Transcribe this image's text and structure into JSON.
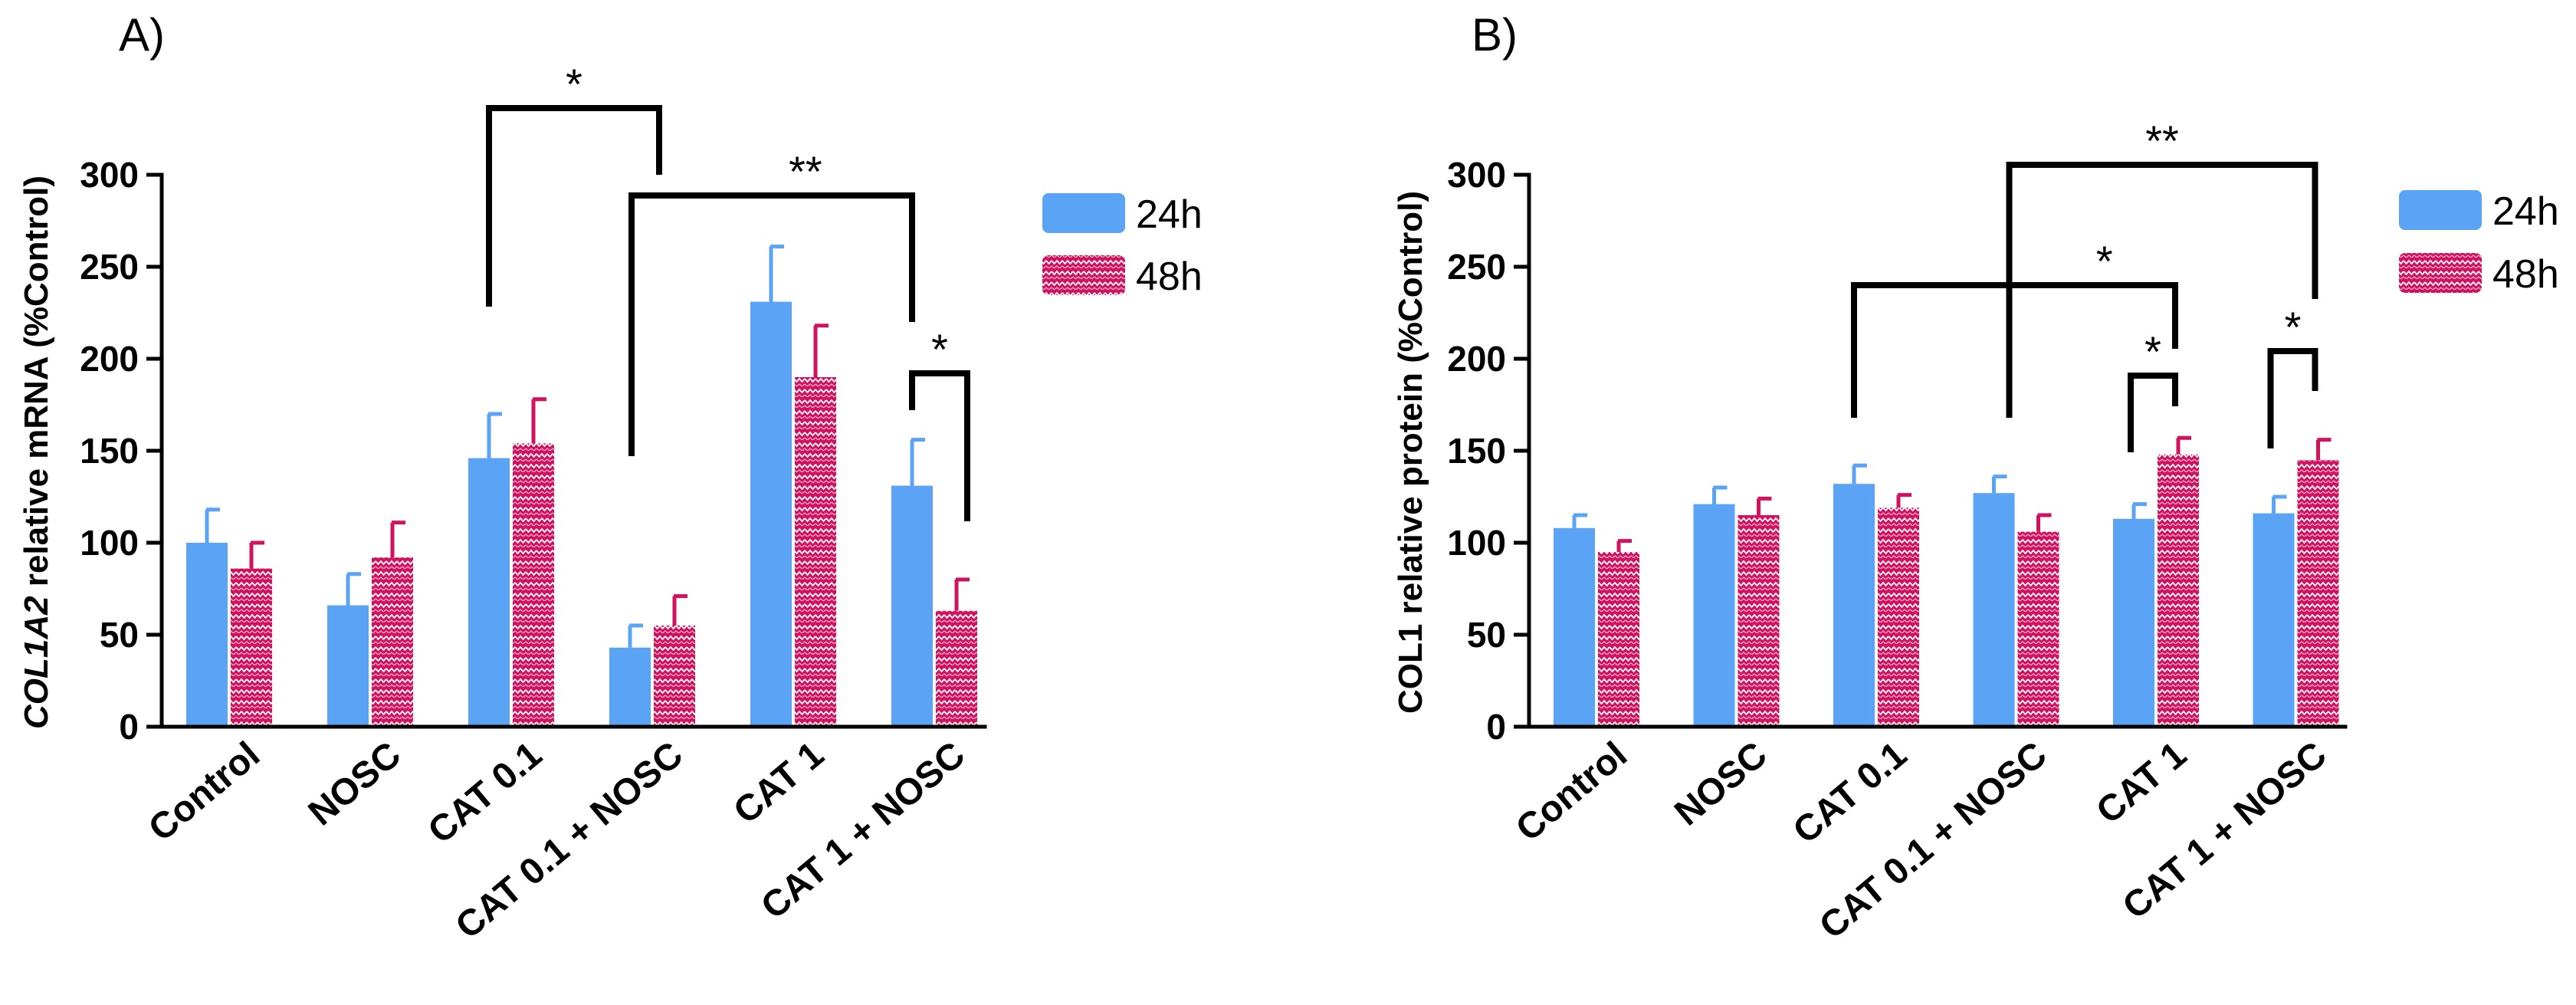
{
  "colors": {
    "h24": "#5aa3f5",
    "h48": "#d2125f",
    "h48_pattern": "#ffffff",
    "axis": "#000000"
  },
  "chart_data": [
    {
      "type": "bar",
      "panel_label": "A)",
      "categories": [
        "Control",
        "NOSC",
        "CAT 0.1",
        "CAT 0.1 + NOSC",
        "CAT 1",
        "CAT 1 + NOSC"
      ],
      "series": [
        {
          "name": "24h",
          "values": [
            100,
            66,
            146,
            43,
            231,
            131
          ],
          "errors": [
            18,
            17,
            24,
            12,
            30,
            25
          ]
        },
        {
          "name": "48h",
          "values": [
            86,
            92,
            154,
            55,
            190,
            63
          ],
          "errors": [
            14,
            19,
            24,
            16,
            28,
            17
          ]
        }
      ],
      "ylabel_italic": "COL1A2",
      "ylabel_rest": " relative mRNA (%Control)",
      "ylim": [
        0,
        300
      ],
      "yticks": [
        "0",
        "50",
        "100",
        "150",
        "200",
        "250",
        "300"
      ],
      "legend_position": "top-right",
      "annotations": [
        {
          "text": "*",
          "from": "CAT 0.1 24h",
          "to": "CAT 0.1 + NOSC 48h"
        },
        {
          "text": "**",
          "from": "CAT 0.1 + NOSC 24h",
          "to": "CAT 1 + NOSC 24h"
        },
        {
          "text": "*",
          "from": "CAT 1 + NOSC 24h",
          "to": "CAT 1 + NOSC 48h"
        }
      ]
    },
    {
      "type": "bar",
      "panel_label": "B)",
      "categories": [
        "Control",
        "NOSC",
        "CAT 0.1",
        "CAT 0.1 + NOSC",
        "CAT 1",
        "CAT 1 + NOSC"
      ],
      "series": [
        {
          "name": "24h",
          "values": [
            108,
            121,
            132,
            127,
            113,
            116
          ],
          "errors": [
            7,
            9,
            10,
            9,
            8,
            9
          ]
        },
        {
          "name": "48h",
          "values": [
            95,
            115,
            119,
            106,
            148,
            145
          ],
          "errors": [
            6,
            9,
            7,
            9,
            9,
            11
          ]
        }
      ],
      "ylabel_italic": "",
      "ylabel_rest": "COL1 relative protein (%Control)",
      "ylim": [
        0,
        300
      ],
      "yticks": [
        "0",
        "50",
        "100",
        "150",
        "200",
        "250",
        "300"
      ],
      "legend_position": "top-right",
      "annotations": [
        {
          "text": "**",
          "from": "CAT 0.1 + NOSC 24h",
          "to": "CAT 1 + NOSC 48h"
        },
        {
          "text": "*",
          "from": "CAT 0.1 24h",
          "to": "CAT 1 48h"
        },
        {
          "text": "*",
          "from": "CAT 1 24h",
          "to": "CAT 1 48h"
        },
        {
          "text": "*",
          "from": "CAT 1 + NOSC 24h",
          "to": "CAT 1 + NOSC 48h"
        }
      ]
    }
  ]
}
